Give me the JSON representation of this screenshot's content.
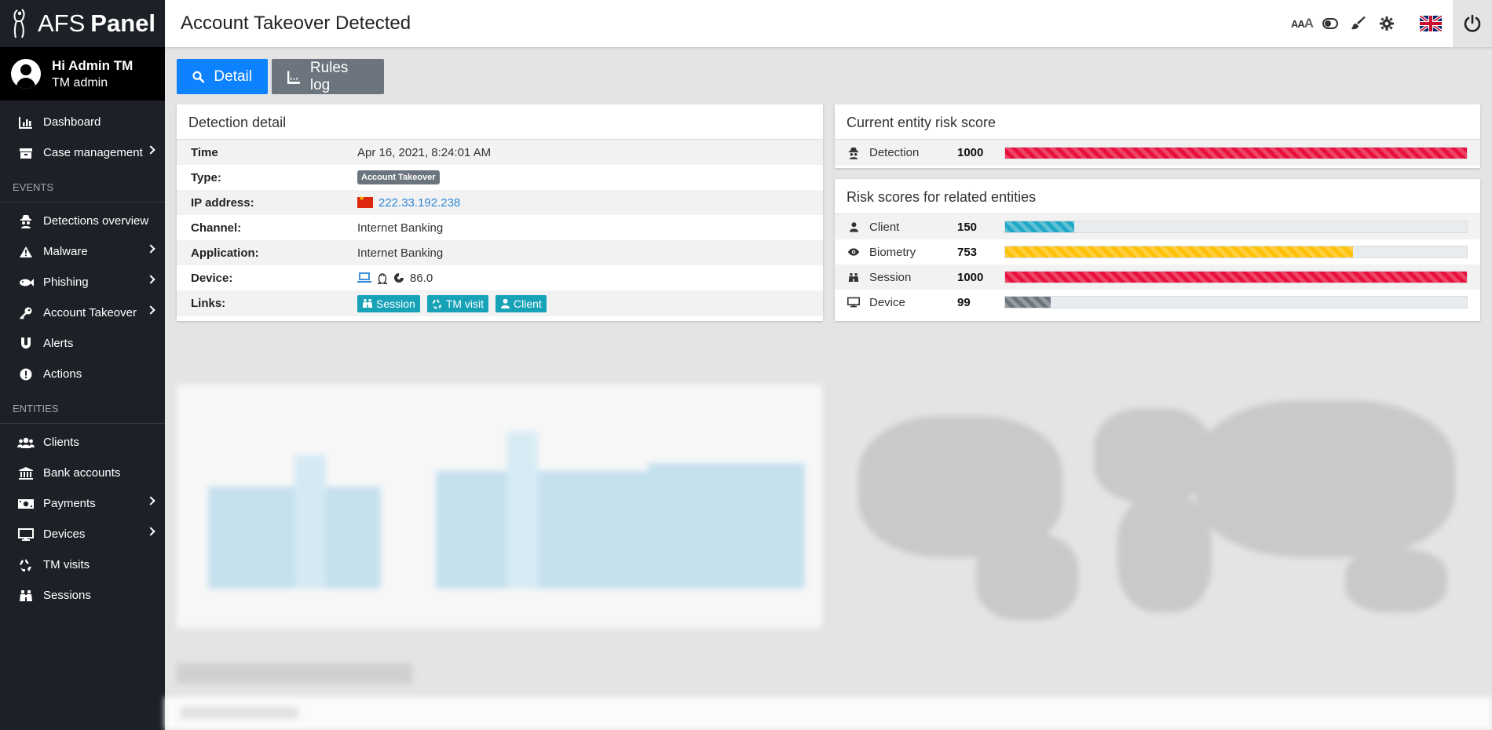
{
  "brand": {
    "light": "AFS",
    "bold": "Panel"
  },
  "user": {
    "greeting": "Hi Admin TM",
    "role": "TM admin"
  },
  "sidebar": {
    "top_items": [
      {
        "label": "Dashboard",
        "icon": "bar-chart-icon"
      },
      {
        "label": "Case management",
        "icon": "box-icon",
        "submenu": true
      }
    ],
    "events_label": "EVENTS",
    "events_items": [
      {
        "label": "Detections overview",
        "icon": "spy-icon"
      },
      {
        "label": "Malware",
        "icon": "warning-icon",
        "submenu": true
      },
      {
        "label": "Phishing",
        "icon": "fish-icon",
        "submenu": true
      },
      {
        "label": "Account Takeover",
        "icon": "key-icon",
        "submenu": true
      },
      {
        "label": "Alerts",
        "icon": "magnet-icon"
      },
      {
        "label": "Actions",
        "icon": "exclamation-circle-icon"
      }
    ],
    "entities_label": "ENTITIES",
    "entities_items": [
      {
        "label": "Clients",
        "icon": "users-icon"
      },
      {
        "label": "Bank accounts",
        "icon": "bank-icon"
      },
      {
        "label": "Payments",
        "icon": "money-icon",
        "submenu": true
      },
      {
        "label": "Devices",
        "icon": "desktop-icon",
        "submenu": true
      },
      {
        "label": "TM visits",
        "icon": "recycle-icon"
      },
      {
        "label": "Sessions",
        "icon": "binoculars-icon"
      }
    ]
  },
  "header": {
    "title": "Account Takeover Detected",
    "font_size_label_big": "AA",
    "font_size_label_small": "A"
  },
  "tabs": {
    "detail": "Detail",
    "rules_log": "Rules log"
  },
  "detection_detail": {
    "title": "Detection detail",
    "rows": {
      "time_label": "Time",
      "time_value": "Apr 16, 2021, 8:24:01 AM",
      "type_label": "Type:",
      "type_value": "Account Takeover",
      "ip_label": "IP address:",
      "ip_value": "222.33.192.238",
      "channel_label": "Channel:",
      "channel_value": "Internet Banking",
      "application_label": "Application:",
      "application_value": "Internet Banking",
      "device_label": "Device:",
      "device_value": "86.0",
      "links_label": "Links:"
    },
    "links": {
      "session": "Session",
      "tm_visit": "TM visit",
      "client": "Client"
    }
  },
  "current_risk": {
    "title": "Current entity risk score",
    "rows": [
      {
        "name": "Detection",
        "score": "1000",
        "fraction": 1.0,
        "color": "#e8103c"
      }
    ]
  },
  "related_risk": {
    "title": "Risk scores for related entities",
    "rows": [
      {
        "name": "Client",
        "score": "150",
        "fraction": 0.15,
        "color": "#21a8c6"
      },
      {
        "name": "Biometry",
        "score": "753",
        "fraction": 0.753,
        "color": "#ffc107"
      },
      {
        "name": "Session",
        "score": "1000",
        "fraction": 1.0,
        "color": "#e8103c"
      },
      {
        "name": "Device",
        "score": "99",
        "fraction": 0.099,
        "color": "#6c757d"
      }
    ]
  },
  "colors": {
    "sidebar_bg": "#1d2127",
    "primary": "#0d82ff",
    "info": "#17a2b8",
    "secondary": "#6c757d"
  }
}
